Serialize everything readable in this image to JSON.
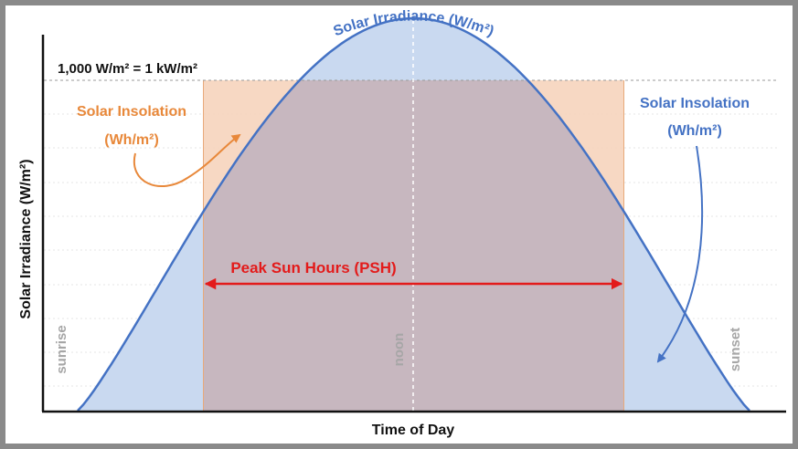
{
  "diagram": {
    "curve_title": "Solar Irradiance (W/m²)",
    "reference_line": "1,000  W/m² =  1 kW/m²",
    "left_annotation": {
      "line1": "Solar Insolation",
      "line2": "(Wh/m²)"
    },
    "right_annotation": {
      "line1": "Solar Insolation",
      "line2": "(Wh/m²)"
    },
    "psh_label": "Peak Sun Hours (PSH)",
    "y_axis_label": "Solar Irradiance (W/m²)",
    "x_axis_label": "Time of Day",
    "time_markers": {
      "sunrise": "sunrise",
      "noon": "noon",
      "sunset": "sunset"
    }
  },
  "colors": {
    "curve": "#4472c4",
    "curve_fill": "#c9d9f0",
    "rect_fill": "#f6d4bd",
    "overlap_fill": "#c7b7bf",
    "orange": "#e8883a",
    "blue_text": "#4472c4",
    "arrow_red": "#e31b1b",
    "marker_gray": "#a6a6a6",
    "frame": "#8a8a8a"
  }
}
